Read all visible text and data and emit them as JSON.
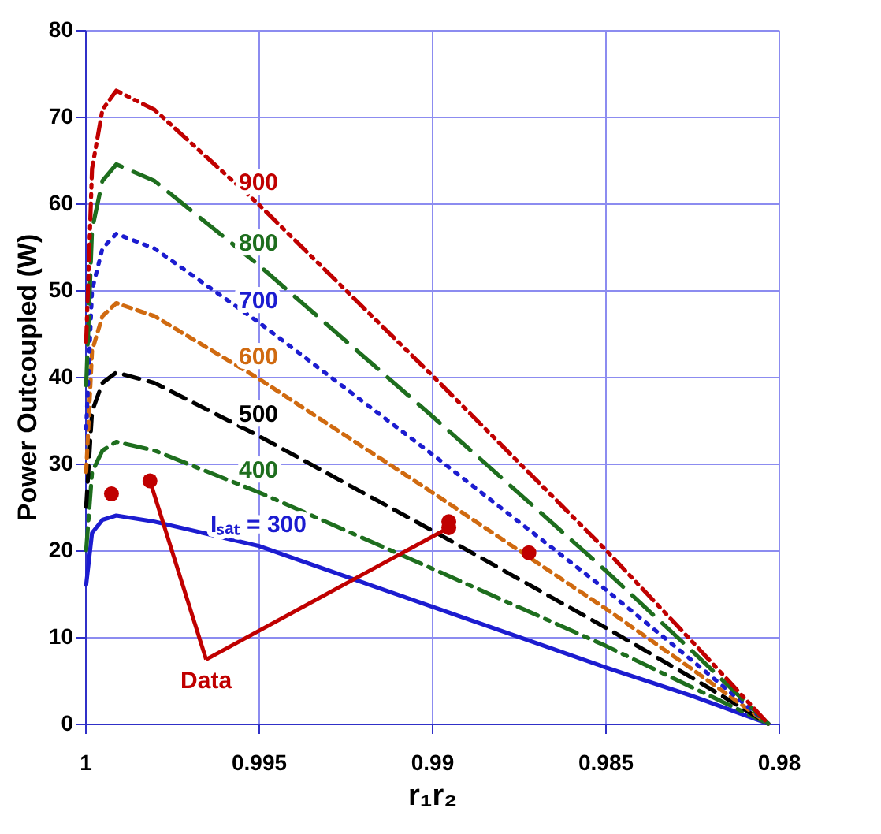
{
  "chart_data": {
    "type": "line",
    "xlabel": "r₁r₂",
    "ylabel": "Power Outcoupled (W)",
    "x": [
      0.99997,
      0.9998,
      0.9995,
      0.9991,
      0.998,
      0.995,
      0.99,
      0.985,
      0.9825,
      0.9803
    ],
    "xlim": [
      1,
      0.98
    ],
    "xticks": [
      1,
      0.995,
      0.99,
      0.985,
      0.98
    ],
    "ylim": [
      0,
      80
    ],
    "yticks": [
      0,
      10,
      20,
      30,
      40,
      50,
      60,
      70,
      80
    ],
    "grid": true,
    "series": [
      {
        "name": "Iₛₐₜ = 300",
        "color": "#1c1cd0",
        "line_style": "solid",
        "values": [
          16,
          22,
          23.5,
          24,
          23.3,
          20.5,
          13.5,
          6.5,
          3.2,
          0
        ]
      },
      {
        "name": "400",
        "color": "#1e6e1e",
        "line_style": "dashed",
        "values": [
          20,
          29,
          31.5,
          32.5,
          31.5,
          26.7,
          17.9,
          9,
          4.2,
          0
        ]
      },
      {
        "name": "500",
        "color": "#000000",
        "line_style": "dashed",
        "values": [
          25,
          36,
          39.3,
          40.5,
          39.3,
          33.2,
          22.3,
          11.1,
          5.3,
          0
        ]
      },
      {
        "name": "600",
        "color": "#d06a10",
        "line_style": "dashed",
        "values": [
          29,
          43,
          47,
          48.5,
          47,
          39.8,
          26.7,
          13.3,
          6.3,
          0
        ]
      },
      {
        "name": "700",
        "color": "#1c1cd0",
        "line_style": "dotted",
        "values": [
          34,
          50,
          54.8,
          56.5,
          54.8,
          46.3,
          31.1,
          15.5,
          7.3,
          0
        ]
      },
      {
        "name": "800",
        "color": "#1e6e1e",
        "line_style": "dashed",
        "values": [
          39,
          57,
          62.6,
          64.5,
          62.6,
          52.9,
          35.5,
          17.7,
          8.4,
          0
        ]
      },
      {
        "name": "900",
        "color": "#c00000",
        "line_style": "dashed",
        "values": [
          44,
          64,
          70.8,
          73,
          70.8,
          59.9,
          40.2,
          20.1,
          9.5,
          0
        ]
      },
      {
        "type": "scatter",
        "color": "#c00000",
        "marker": "circle",
        "x": [
          0.99924,
          0.99813,
          0.98951,
          0.98951,
          0.9872
        ],
        "values": [
          26.5,
          28,
          22.6,
          23.3,
          19.7
        ]
      }
    ],
    "annotations": [
      {
        "text": "Data",
        "x": 0.98951,
        "y": 22.6
      }
    ]
  }
}
